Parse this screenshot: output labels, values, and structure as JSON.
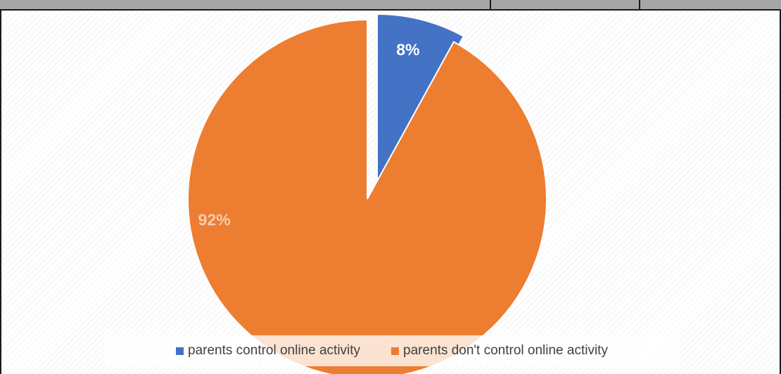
{
  "chart_data": {
    "type": "pie",
    "title": "",
    "categories": [
      "parents control online activity",
      "parents don't control online activity"
    ],
    "values": [
      8,
      92
    ],
    "labels": [
      "8%",
      "92%"
    ],
    "colors": [
      "#4472c4",
      "#ed7d31"
    ],
    "label_colors": [
      "#ffffff",
      "#f8cdaf"
    ],
    "legend_position": "bottom"
  }
}
